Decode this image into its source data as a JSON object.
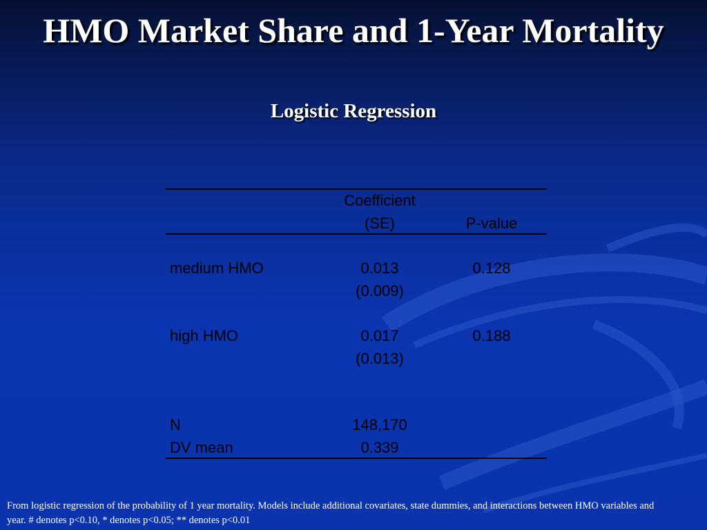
{
  "title": "HMO Market Share and 1-Year Mortality",
  "subtitle": "Logistic Regression",
  "table": {
    "header": {
      "coefficient": [
        "Coefficient",
        "(SE)"
      ],
      "p_value": "P-value"
    },
    "rows": [
      {
        "label": "medium HMO",
        "coefficient": "0.013",
        "se": "(0.009)",
        "p_value": "0.128"
      },
      {
        "label": "high HMO",
        "coefficient": "0.017",
        "se": "(0.013)",
        "p_value": "0.188"
      }
    ],
    "stats": [
      {
        "label": "N",
        "value": "148,170"
      },
      {
        "label": "DV mean",
        "value": "0.339"
      }
    ]
  },
  "footnote": "From logistic regression of  the probability of  1 year mortality.  Models include additional covariates, state dummies, and interactions between HMO variables and year.  # denotes p<0.10, * denotes p<0.05; ** denotes p<0.01"
}
